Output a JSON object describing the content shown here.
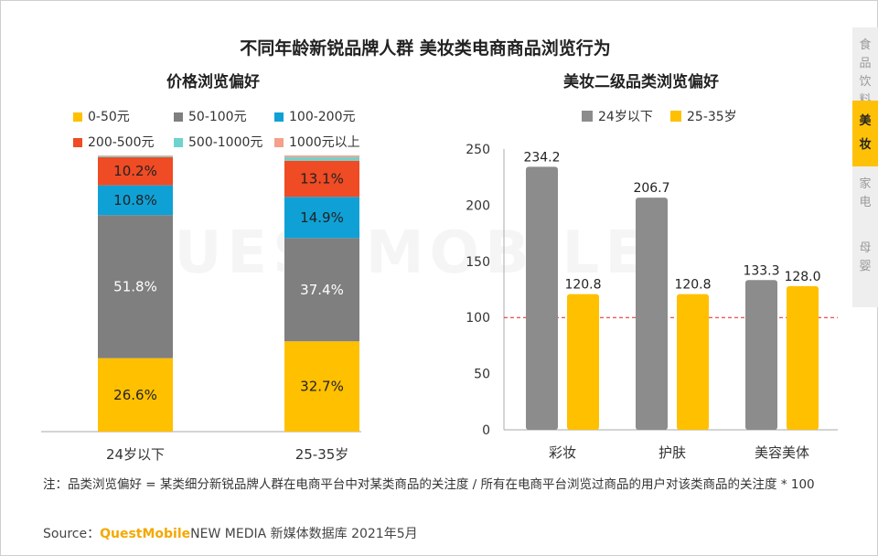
{
  "title": "不同年龄新锐品牌人群 美妆类电商商品浏览行为",
  "watermark": "QUESTMOBILE",
  "colors": {
    "c0_50": "#ffc000",
    "c50_100": "#7f7f7f",
    "c100_200": "#0fa1d6",
    "c200_500": "#ef4b24",
    "c500_1000": "#6ed3ce",
    "c1000_plus": "#f4a08b",
    "grey_bar": "#8c8c8c",
    "yellow_bar": "#ffc000",
    "ref_line": "#e02020"
  },
  "side_nav": {
    "items": [
      {
        "label": "食品饮料",
        "active": false
      },
      {
        "label": "美妆",
        "active": true
      },
      {
        "label": "家电",
        "active": false
      },
      {
        "label": "母婴",
        "active": false
      }
    ]
  },
  "note": "注：品类浏览偏好 = 某类细分新锐品牌人群在电商平台中对某类商品的关注度 / 所有在电商平台浏览过商品的用户对该类商品的关注度 * 100",
  "source": {
    "prefix": "Source：",
    "brand": "QuestMobile",
    "suffix": "NEW MEDIA 新媒体数据库 2021年5月"
  },
  "chart_data": [
    {
      "type": "bar",
      "stacked": true,
      "percent": true,
      "title": "价格浏览偏好",
      "categories": [
        "24岁以下",
        "25-35岁"
      ],
      "series": [
        {
          "name": "0-50元",
          "color": "#ffc000",
          "values": [
            26.6,
            32.7
          ]
        },
        {
          "name": "50-100元",
          "color": "#7f7f7f",
          "values": [
            51.8,
            37.4
          ]
        },
        {
          "name": "100-200元",
          "color": "#0fa1d6",
          "values": [
            10.8,
            14.9
          ]
        },
        {
          "name": "200-500元",
          "color": "#ef4b24",
          "values": [
            10.2,
            13.1
          ]
        },
        {
          "name": "500-1000元",
          "color": "#6ed3ce",
          "values": [
            0.4,
            1.3
          ]
        },
        {
          "name": "1000元以上",
          "color": "#f4a08b",
          "values": [
            0.2,
            0.6
          ]
        }
      ],
      "labels_shown": [
        "26.6%",
        "51.8%",
        "10.8%",
        "10.2%",
        "32.7%",
        "37.4%",
        "14.9%",
        "13.1%"
      ],
      "legend_position": "top"
    },
    {
      "type": "bar",
      "title": "美妆二级品类浏览偏好",
      "categories": [
        "彩妆",
        "护肤",
        "美容美体"
      ],
      "series": [
        {
          "name": "24岁以下",
          "color": "#8c8c8c",
          "values": [
            234.2,
            206.7,
            133.3
          ],
          "labels": [
            "234.2",
            "206.7",
            "133.3"
          ]
        },
        {
          "name": "25-35岁",
          "color": "#ffc000",
          "values": [
            120.8,
            120.8,
            128.0
          ],
          "labels": [
            "120.8",
            "120.8",
            "128.0"
          ]
        }
      ],
      "ylim": [
        0,
        250
      ],
      "yticks": [
        "0",
        "50",
        "100",
        "150",
        "200",
        "250"
      ],
      "reference_line": 100,
      "legend_position": "top"
    }
  ]
}
